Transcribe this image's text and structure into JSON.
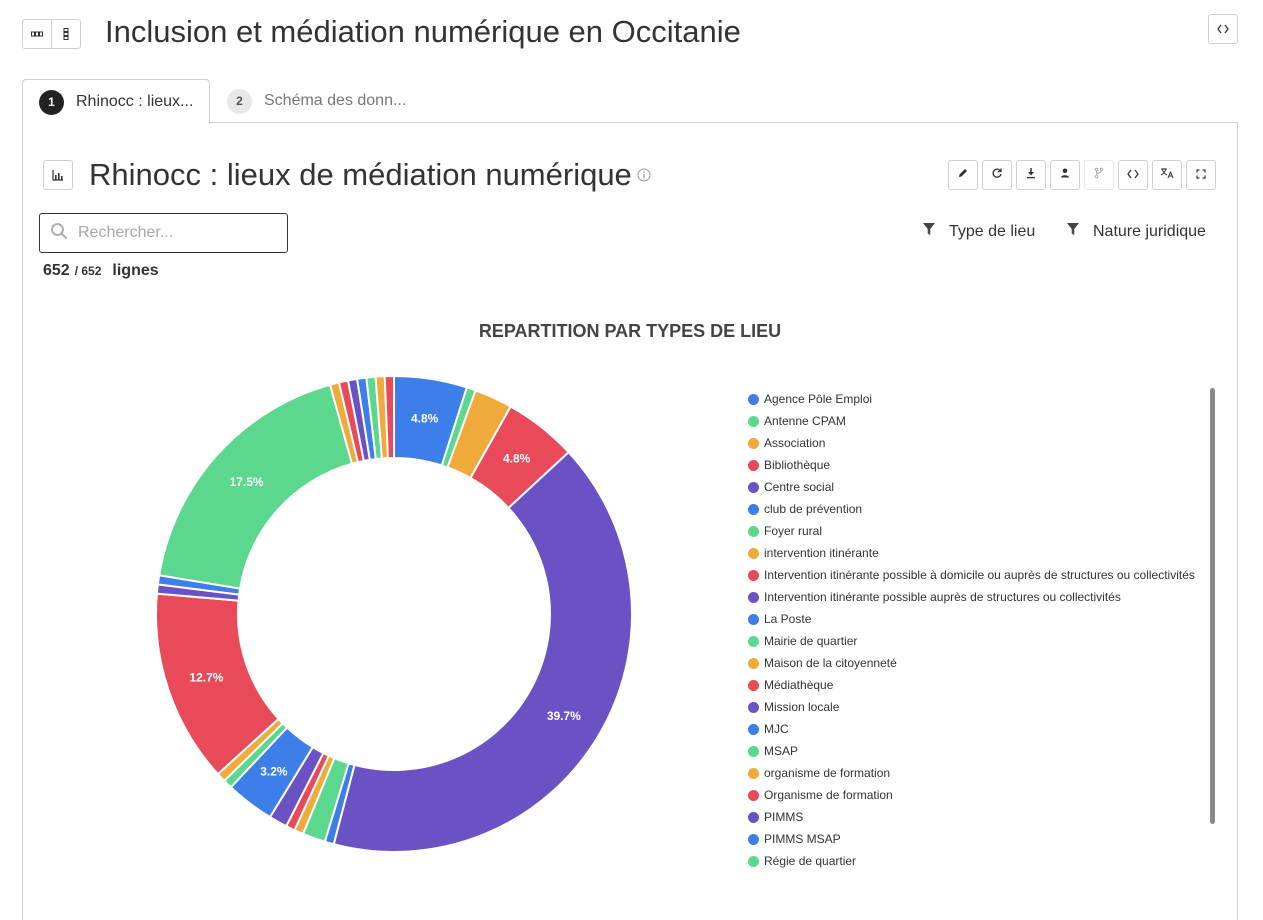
{
  "page": {
    "title": "Inclusion et médiation numérique en Occitanie"
  },
  "tabs": [
    {
      "num": "1",
      "label": "Rhinocc : lieux..."
    },
    {
      "num": "2",
      "label": "Schéma des donn..."
    }
  ],
  "dataset": {
    "title": "Rhinocc : lieux de médiation numérique",
    "search_placeholder": "Rechercher...",
    "count_shown": "652",
    "count_total": "/ 652",
    "count_unit": "lignes",
    "filters": [
      "Type de lieu",
      "Nature juridique"
    ]
  },
  "toolbar_icons": [
    "pencil-icon",
    "refresh-icon",
    "download-icon",
    "user-icon",
    "fork-icon",
    "code-icon",
    "translate-icon",
    "fullscreen-icon"
  ],
  "colors": {
    "blue": "#3d7ee8",
    "green": "#5bd88d",
    "orange": "#f0a93b",
    "red": "#e84a5a",
    "purple": "#6a52c4"
  },
  "chart_data": {
    "type": "pie",
    "title": "REPARTITION PAR TYPES DE LIEU",
    "variant": "donut",
    "legend_position": "right",
    "categories": [
      "Agence Pôle Emploi",
      "Antenne CPAM",
      "Association",
      "Bibliothèque",
      "Centre social",
      "club de prévention",
      "Foyer rural",
      "intervention itinérante",
      "Intervention itinérante possible à domicile ou auprès de structures ou collectivités",
      "Intervention itinérante possible auprès de structures ou collectivités",
      "La Poste",
      "Mairie de quartier",
      "Maison de la citoyenneté",
      "Médiathèque",
      "Mission locale",
      "MJC",
      "MSAP",
      "organisme de formation",
      "Organisme de formation",
      "PIMMS",
      "PIMMS MSAP",
      "Régie de quartier"
    ],
    "slices": [
      {
        "category": "Agence Pôle Emploi",
        "value": 4.8,
        "label": "4.8%",
        "color": "#3d7ee8"
      },
      {
        "category": "Antenne CPAM",
        "value": 0.6,
        "color": "#5bd88d"
      },
      {
        "category": "Association",
        "value": 2.5,
        "color": "#f0a93b"
      },
      {
        "category": "Bibliothèque",
        "value": 4.8,
        "label": "4.8%",
        "color": "#e84a5a"
      },
      {
        "category": "Centre social",
        "value": 39.7,
        "label": "39.7%",
        "color": "#6a52c4"
      },
      {
        "category": "club de prévention",
        "value": 0.6,
        "color": "#3d7ee8"
      },
      {
        "category": "Foyer rural",
        "value": 1.5,
        "color": "#5bd88d"
      },
      {
        "category": "intervention itinérante",
        "value": 0.6,
        "color": "#f0a93b"
      },
      {
        "category": "Intervention itinérante possible à domicile ou auprès de structures ou collectivités",
        "value": 0.6,
        "color": "#e84a5a"
      },
      {
        "category": "Intervention itinérante possible auprès de structures ou collectivités",
        "value": 1.2,
        "color": "#6a52c4"
      },
      {
        "category": "La Poste",
        "value": 3.2,
        "label": "3.2%",
        "color": "#3d7ee8"
      },
      {
        "category": "Mairie de quartier",
        "value": 0.6,
        "color": "#5bd88d"
      },
      {
        "category": "Maison de la citoyenneté",
        "value": 0.6,
        "color": "#f0a93b"
      },
      {
        "category": "Médiathèque",
        "value": 12.7,
        "label": "12.7%",
        "color": "#e84a5a"
      },
      {
        "category": "Mission locale",
        "value": 0.6,
        "color": "#6a52c4"
      },
      {
        "category": "MJC",
        "value": 0.6,
        "color": "#3d7ee8"
      },
      {
        "category": "MSAP",
        "value": 17.5,
        "label": "17.5%",
        "color": "#5bd88d"
      },
      {
        "category": "organisme de formation",
        "value": 0.6,
        "color": "#f0a93b"
      },
      {
        "category": "Organisme de formation",
        "value": 0.6,
        "color": "#e84a5a"
      },
      {
        "category": "PIMMS",
        "value": 0.6,
        "color": "#6a52c4"
      },
      {
        "category": "PIMMS MSAP",
        "value": 0.6,
        "color": "#3d7ee8"
      },
      {
        "category": "Régie de quartier",
        "value": 0.6,
        "color": "#5bd88d"
      },
      {
        "category": "",
        "value": 0.6,
        "color": "#f0a93b"
      },
      {
        "category": "",
        "value": 0.6,
        "color": "#e84a5a"
      }
    ]
  }
}
